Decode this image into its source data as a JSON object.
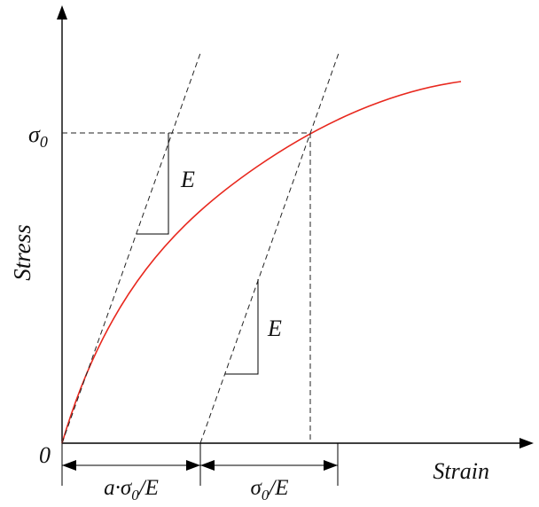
{
  "axes": {
    "y_label": "Stress",
    "x_label": "Strain",
    "origin_label": "0"
  },
  "stress_level": {
    "symbol": "σ",
    "subscript": "0"
  },
  "slopes": {
    "first": "E",
    "second": "E"
  },
  "dimensions": {
    "left": {
      "prefix": "a·σ",
      "subscript": "0",
      "suffix": "/E"
    },
    "right": {
      "prefix": "σ",
      "subscript": "0",
      "suffix": "/E"
    }
  },
  "colors": {
    "curve": "#e8281e",
    "lines": "#000000"
  }
}
